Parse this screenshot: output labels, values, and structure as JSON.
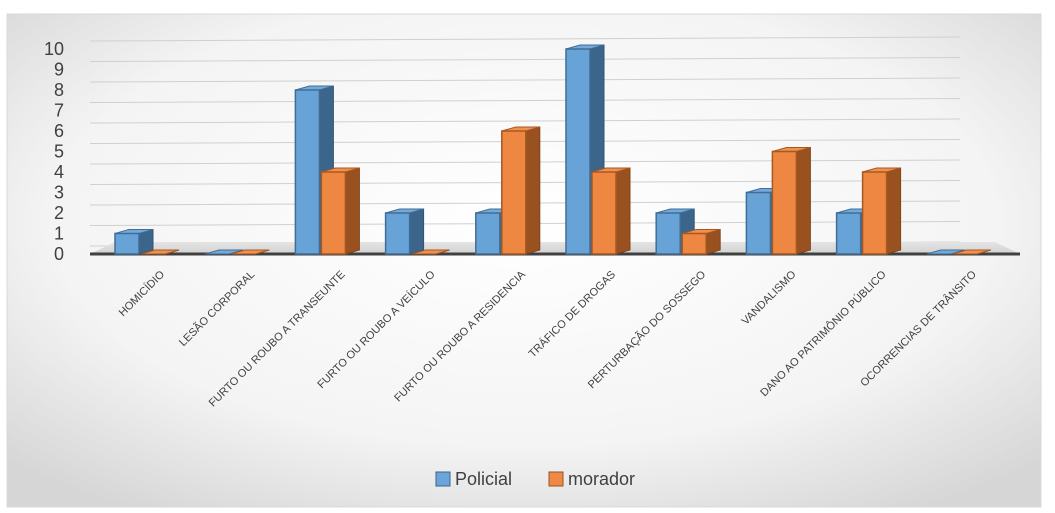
{
  "chart_data": {
    "type": "bar",
    "categories": [
      "HOMICÍDIO",
      "LESÃO CORPORAL",
      "FURTO OU ROUBO A TRANSEUNTE",
      "FURTO OU ROUBO A VEÍCULO",
      "FURTO OU ROUBO A RESIDENCIA",
      "TRÁFICO DE DROGAS",
      "PERTURBAÇÃO DO SOSSEGO",
      "VANDALISMO",
      "DANO AO PATRIMÔNIO PÚBLICO",
      "OCORRENCIAS DE TRÂNSITO"
    ],
    "series": [
      {
        "name": "Policial",
        "values": [
          1,
          0,
          8,
          2,
          2,
          10,
          2,
          3,
          2,
          0
        ],
        "color": "#5b9bd5"
      },
      {
        "name": "morador",
        "values": [
          0,
          0,
          4,
          0,
          6,
          4,
          1,
          5,
          4,
          0
        ],
        "color": "#ed7d31"
      }
    ],
    "title": "",
    "xlabel": "",
    "ylabel": "",
    "ylim": [
      0,
      10
    ],
    "yticks": [
      0,
      1,
      2,
      3,
      4,
      5,
      6,
      7,
      8,
      9,
      10
    ],
    "grid": true,
    "legend_position": "bottom",
    "style": "3d-clustered-column"
  }
}
